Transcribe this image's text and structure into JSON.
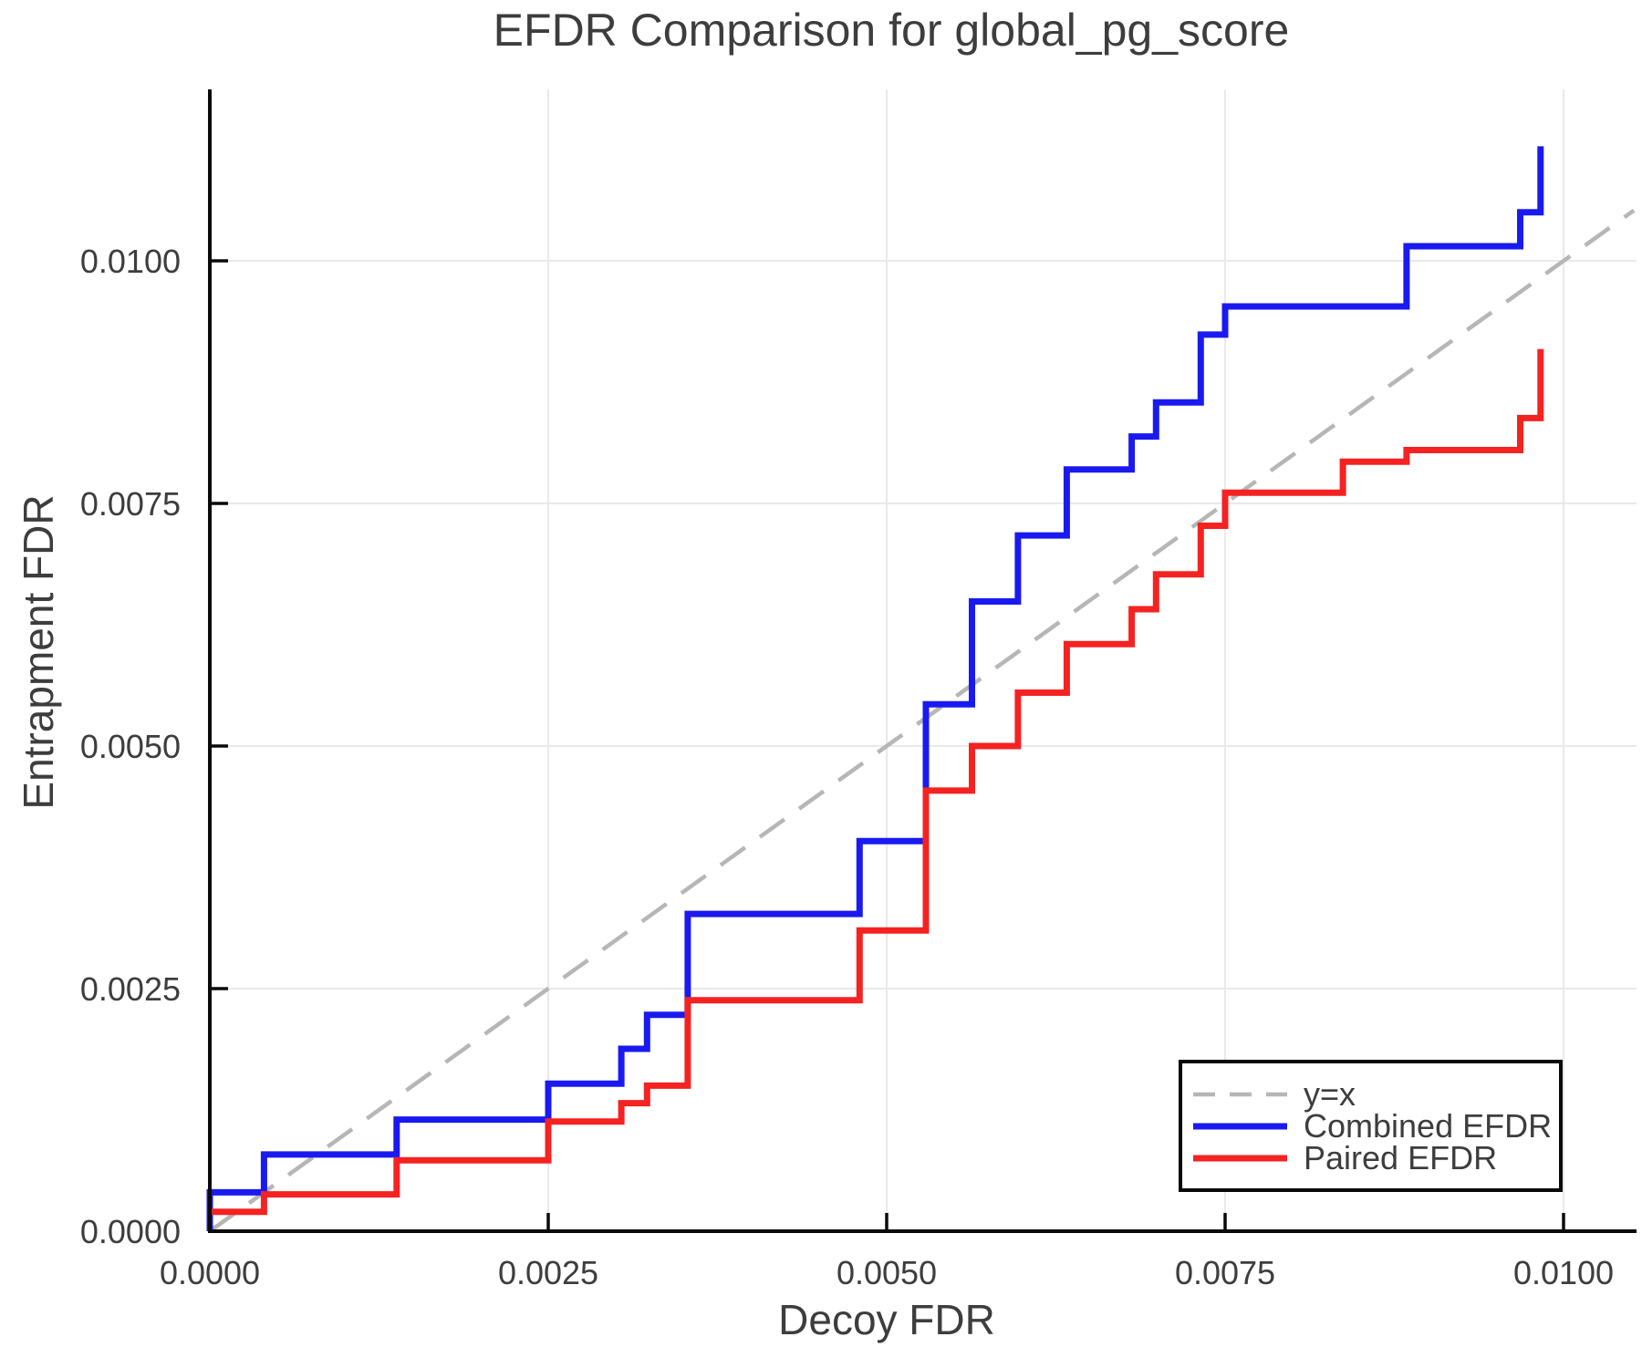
{
  "chart_data": {
    "type": "line",
    "title": "EFDR Comparison for global_pg_score",
    "xlabel": "Decoy FDR",
    "ylabel": "Entrapment FDR",
    "xlim": [
      0,
      0.01054
    ],
    "ylim": [
      0,
      0.01177
    ],
    "grid": true,
    "legend_position": "lower right",
    "x_ticks": {
      "values": [
        0.0,
        0.0025,
        0.005,
        0.0075,
        0.01
      ],
      "labels": [
        "0.0000",
        "0.0025",
        "0.0050",
        "0.0075",
        "0.0100"
      ]
    },
    "y_ticks": {
      "values": [
        0.0,
        0.0025,
        0.005,
        0.0075,
        0.01
      ],
      "labels": [
        "0.0000",
        "0.0025",
        "0.0050",
        "0.0075",
        "0.0100"
      ]
    },
    "series": [
      {
        "name": "y=x",
        "kind": "diagonal",
        "style": "dashed",
        "color": "#b6b6b6",
        "x": [
          0,
          0.01052
        ],
        "y": [
          0,
          0.01052
        ]
      },
      {
        "name": "Combined EFDR",
        "kind": "step",
        "style": "solid",
        "color": "#1a1af0",
        "start": [
          0,
          0
        ],
        "steps": [
          [
            0.0,
            0.0004
          ],
          [
            0.0004,
            0.00079
          ],
          [
            0.00138,
            0.00115
          ],
          [
            0.0025,
            0.00152
          ],
          [
            0.00304,
            0.00188
          ],
          [
            0.00323,
            0.00223
          ],
          [
            0.00353,
            0.00327
          ],
          [
            0.0048,
            0.00402
          ],
          [
            0.00529,
            0.00543
          ],
          [
            0.00563,
            0.00649
          ],
          [
            0.00597,
            0.00717
          ],
          [
            0.00633,
            0.00785
          ],
          [
            0.00681,
            0.00819
          ],
          [
            0.00699,
            0.00854
          ],
          [
            0.00732,
            0.00924
          ],
          [
            0.0075,
            0.00953
          ],
          [
            0.00884,
            0.01015
          ],
          [
            0.00968,
            0.0105
          ],
          [
            0.00983,
            0.01118
          ]
        ]
      },
      {
        "name": "Paired EFDR",
        "kind": "step",
        "style": "solid",
        "color": "#f52222",
        "start": [
          0,
          0.0002
        ],
        "steps": [
          [
            0.0004,
            0.00038
          ],
          [
            0.00138,
            0.00073
          ],
          [
            0.0025,
            0.00113
          ],
          [
            0.00304,
            0.00132
          ],
          [
            0.00323,
            0.0015
          ],
          [
            0.00353,
            0.00238
          ],
          [
            0.0048,
            0.0031
          ],
          [
            0.00529,
            0.00454
          ],
          [
            0.00563,
            0.005
          ],
          [
            0.00597,
            0.00555
          ],
          [
            0.00633,
            0.00605
          ],
          [
            0.00681,
            0.00641
          ],
          [
            0.00699,
            0.00677
          ],
          [
            0.00732,
            0.00727
          ],
          [
            0.0075,
            0.00761
          ],
          [
            0.00837,
            0.00793
          ],
          [
            0.00884,
            0.00805
          ],
          [
            0.00968,
            0.00838
          ],
          [
            0.00983,
            0.00909
          ]
        ]
      }
    ],
    "style_colors": {
      "grid": "#e9e9e9",
      "spine": "#0a0a0a",
      "tick": "#0a0a0a",
      "text": "#3d3d3d",
      "background": "#ffffff"
    }
  }
}
